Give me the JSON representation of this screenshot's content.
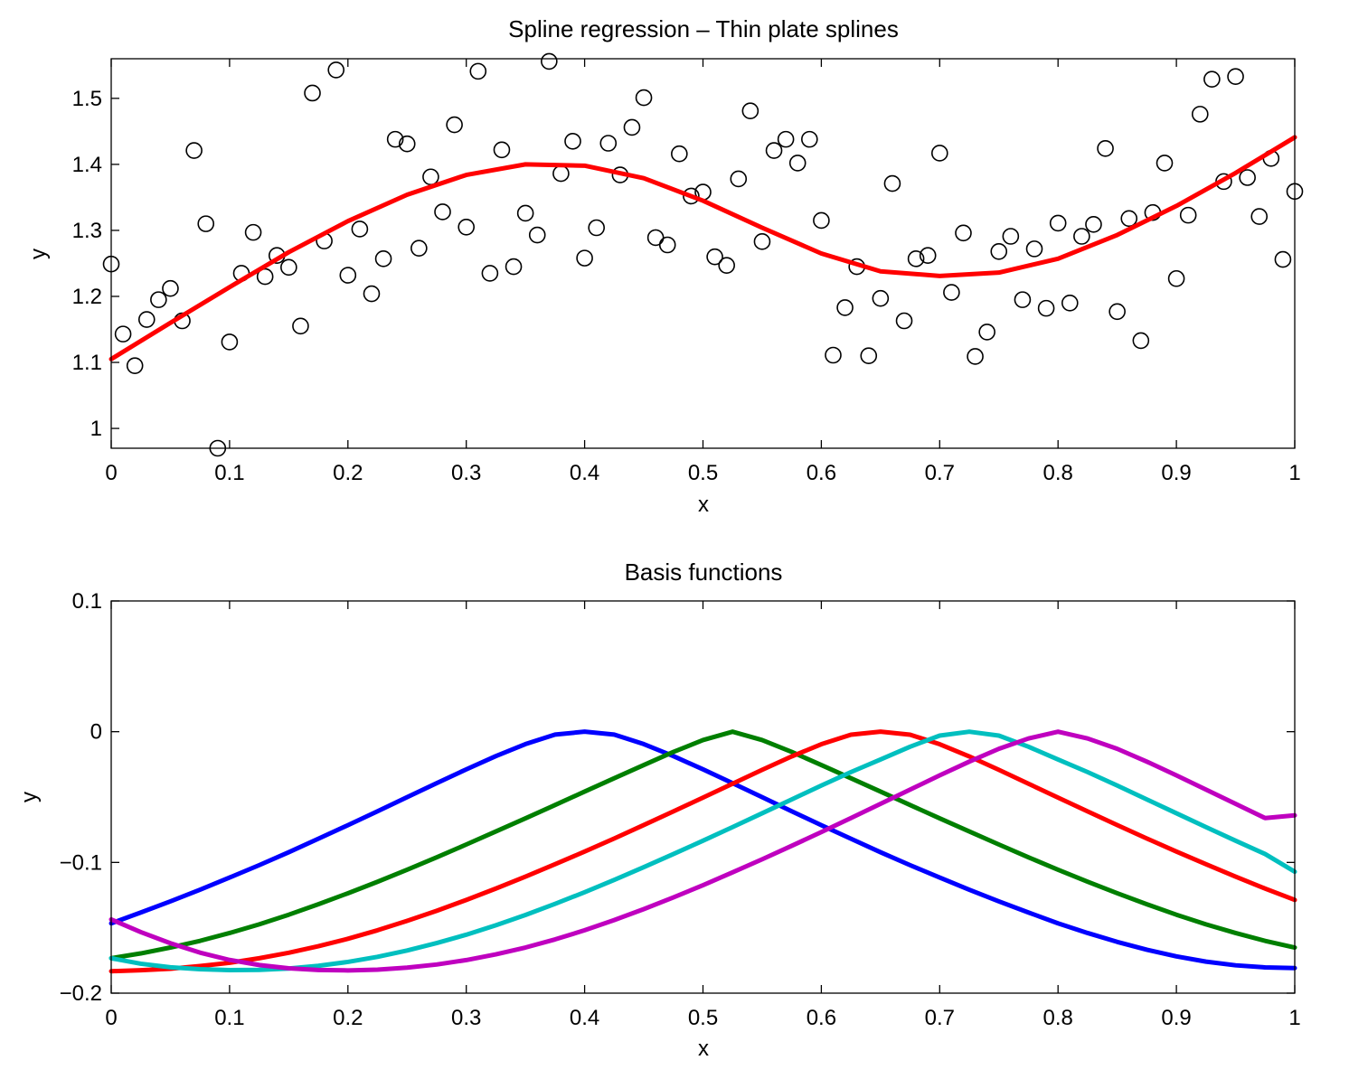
{
  "chart_data": [
    {
      "type": "scatter",
      "title": "Spline regression – Thin plate splines",
      "xlabel": "x",
      "ylabel": "y",
      "xlim": [
        0,
        1
      ],
      "ylim": [
        0.97,
        1.56
      ],
      "xticks": [
        "0",
        "0.1",
        "0.2",
        "0.3",
        "0.4",
        "0.5",
        "0.6",
        "0.7",
        "0.8",
        "0.9",
        "1"
      ],
      "yticks": [
        "1",
        "1.1",
        "1.2",
        "1.3",
        "1.4",
        "1.5"
      ],
      "series": [
        {
          "mark": "circle",
          "color": "#000000",
          "x": [
            0,
            0.01,
            0.02,
            0.03,
            0.04,
            0.05,
            0.06,
            0.07,
            0.08,
            0.09,
            0.1,
            0.11,
            0.12,
            0.13,
            0.14,
            0.15,
            0.16,
            0.17,
            0.18,
            0.19,
            0.2,
            0.21,
            0.22,
            0.23,
            0.24,
            0.25,
            0.26,
            0.27,
            0.28,
            0.29,
            0.3,
            0.31,
            0.32,
            0.33,
            0.34,
            0.35,
            0.36,
            0.37,
            0.38,
            0.39,
            0.4,
            0.41,
            0.42,
            0.43,
            0.44,
            0.45,
            0.46,
            0.47,
            0.48,
            0.49,
            0.5,
            0.51,
            0.52,
            0.53,
            0.54,
            0.55,
            0.56,
            0.57,
            0.58,
            0.59,
            0.6,
            0.61,
            0.62,
            0.63,
            0.64,
            0.65,
            0.66,
            0.67,
            0.68,
            0.69,
            0.7,
            0.71,
            0.72,
            0.73,
            0.74,
            0.75,
            0.76,
            0.77,
            0.78,
            0.79,
            0.8,
            0.81,
            0.82,
            0.83,
            0.84,
            0.85,
            0.86,
            0.87,
            0.88,
            0.89,
            0.9,
            0.91,
            0.92,
            0.93,
            0.94,
            0.95,
            0.96,
            0.97,
            0.98,
            0.99,
            1
          ],
          "y": [
            1.249,
            1.143,
            1.095,
            1.165,
            1.195,
            1.212,
            1.163,
            1.421,
            1.31,
            0.97,
            1.131,
            1.235,
            1.297,
            1.23,
            1.262,
            1.244,
            1.155,
            1.508,
            1.284,
            1.543,
            1.232,
            1.302,
            1.204,
            1.257,
            1.438,
            1.431,
            1.273,
            1.381,
            1.328,
            1.46,
            1.305,
            1.541,
            1.235,
            1.422,
            1.245,
            1.326,
            1.293,
            1.556,
            1.386,
            1.435,
            1.258,
            1.304,
            1.432,
            1.384,
            1.456,
            1.501,
            1.289,
            1.278,
            1.416,
            1.352,
            1.358,
            1.26,
            1.247,
            1.378,
            1.481,
            1.283,
            1.421,
            1.438,
            1.402,
            1.438,
            1.315,
            1.111,
            1.183,
            1.245,
            1.11,
            1.197,
            1.371,
            1.163,
            1.257,
            1.262,
            1.417,
            1.206,
            1.296,
            1.109,
            1.146,
            1.268,
            1.291,
            1.195,
            1.272,
            1.182,
            1.311,
            1.19,
            1.291,
            1.309,
            1.424,
            1.177,
            1.318,
            1.133,
            1.327,
            1.402,
            1.227,
            1.323,
            1.476,
            1.529,
            1.374,
            1.533,
            1.38,
            1.321,
            1.409,
            1.256,
            1.359
          ]
        },
        {
          "mark": "line",
          "color": "#ff0000",
          "x": [
            0,
            0.05,
            0.1,
            0.15,
            0.2,
            0.25,
            0.3,
            0.35,
            0.4,
            0.45,
            0.5,
            0.55,
            0.6,
            0.65,
            0.7,
            0.75,
            0.8,
            0.85,
            0.9,
            0.95,
            1
          ],
          "y": [
            1.105,
            1.16,
            1.214,
            1.267,
            1.314,
            1.354,
            1.384,
            1.4,
            1.398,
            1.379,
            1.345,
            1.304,
            1.265,
            1.238,
            1.231,
            1.236,
            1.257,
            1.293,
            1.337,
            1.387,
            1.441
          ]
        }
      ]
    },
    {
      "type": "line",
      "title": "Basis functions",
      "xlabel": "x",
      "ylabel": "y",
      "xlim": [
        0,
        1
      ],
      "ylim": [
        -0.2,
        0.1
      ],
      "xticks": [
        "0",
        "0.1",
        "0.2",
        "0.3",
        "0.4",
        "0.5",
        "0.6",
        "0.7",
        "0.8",
        "0.9",
        "1"
      ],
      "yticks": [
        "−0.2",
        "−0.1",
        "0",
        "0.1"
      ],
      "x": [
        0,
        0.025,
        0.05,
        0.075,
        0.1,
        0.125,
        0.15,
        0.175,
        0.2,
        0.225,
        0.25,
        0.275,
        0.3,
        0.325,
        0.35,
        0.375,
        0.4,
        0.425,
        0.45,
        0.475,
        0.5,
        0.525,
        0.55,
        0.575,
        0.6,
        0.625,
        0.65,
        0.675,
        0.7,
        0.725,
        0.75,
        0.775,
        0.8,
        0.825,
        0.85,
        0.875,
        0.9,
        0.925,
        0.95,
        0.975,
        1
      ],
      "series": [
        {
          "color": "#0000ff",
          "values": [
            -0.1466,
            -0.1383,
            -0.1298,
            -0.1209,
            -0.1116,
            -0.1021,
            -0.0922,
            -0.0819,
            -0.0715,
            -0.0609,
            -0.0501,
            -0.0394,
            -0.0288,
            -0.0187,
            -0.0095,
            -0.0022,
            0.0,
            -0.0022,
            -0.0095,
            -0.0187,
            -0.0288,
            -0.0394,
            -0.0501,
            -0.0609,
            -0.0715,
            -0.0819,
            -0.0922,
            -0.1021,
            -0.1116,
            -0.1209,
            -0.1298,
            -0.1383,
            -0.1466,
            -0.154,
            -0.1608,
            -0.1668,
            -0.1719,
            -0.1759,
            -0.1787,
            -0.1803,
            -0.1808
          ]
        },
        {
          "color": "#007f00",
          "values": [
            -0.1733,
            -0.1696,
            -0.1651,
            -0.16,
            -0.154,
            -0.1474,
            -0.14,
            -0.132,
            -0.1236,
            -0.1148,
            -0.1056,
            -0.0961,
            -0.0863,
            -0.0763,
            -0.0663,
            -0.0561,
            -0.0458,
            -0.0356,
            -0.0255,
            -0.0155,
            -0.0064,
            0.0,
            -0.0064,
            -0.0155,
            -0.0255,
            -0.0356,
            -0.0458,
            -0.0561,
            -0.0663,
            -0.0763,
            -0.0863,
            -0.0961,
            -0.1056,
            -0.1148,
            -0.1236,
            -0.132,
            -0.14,
            -0.1474,
            -0.154,
            -0.16,
            -0.1651
          ]
        },
        {
          "color": "#ff0000",
          "values": [
            -0.1832,
            -0.1825,
            -0.1813,
            -0.1793,
            -0.1768,
            -0.1733,
            -0.1691,
            -0.1641,
            -0.1584,
            -0.1519,
            -0.1447,
            -0.137,
            -0.1287,
            -0.12,
            -0.1109,
            -0.1014,
            -0.0917,
            -0.0817,
            -0.0714,
            -0.061,
            -0.0504,
            -0.0398,
            -0.0292,
            -0.0189,
            -0.0096,
            -0.0023,
            0.0,
            -0.0023,
            -0.0096,
            -0.0189,
            -0.0292,
            -0.0398,
            -0.0504,
            -0.061,
            -0.0714,
            -0.0817,
            -0.0917,
            -0.1014,
            -0.1109,
            -0.12,
            -0.1287
          ]
        },
        {
          "color": "#00bfbf",
          "values": [
            -0.1733,
            -0.1775,
            -0.1802,
            -0.1817,
            -0.1824,
            -0.1822,
            -0.1812,
            -0.1791,
            -0.1761,
            -0.1722,
            -0.1674,
            -0.1617,
            -0.1553,
            -0.1481,
            -0.1402,
            -0.1317,
            -0.1228,
            -0.1134,
            -0.1036,
            -0.0936,
            -0.0834,
            -0.073,
            -0.0624,
            -0.0518,
            -0.0412,
            -0.0309,
            -0.0213,
            -0.0115,
            -0.003,
            0.0,
            -0.003,
            -0.0115,
            -0.0213,
            -0.0309,
            -0.0412,
            -0.0518,
            -0.0624,
            -0.073,
            -0.0834,
            -0.0936,
            -0.1071
          ]
        },
        {
          "color": "#bf00bf",
          "values": [
            -0.1436,
            -0.1533,
            -0.1618,
            -0.169,
            -0.1746,
            -0.1785,
            -0.181,
            -0.1823,
            -0.1826,
            -0.182,
            -0.1805,
            -0.1781,
            -0.1747,
            -0.1703,
            -0.1651,
            -0.1589,
            -0.1519,
            -0.1441,
            -0.1357,
            -0.1268,
            -0.1174,
            -0.1076,
            -0.0976,
            -0.0873,
            -0.0768,
            -0.0661,
            -0.0552,
            -0.0443,
            -0.0334,
            -0.0229,
            -0.0131,
            -0.0052,
            0.0,
            -0.0052,
            -0.0131,
            -0.0229,
            -0.0334,
            -0.0443,
            -0.0552,
            -0.0661,
            -0.064
          ]
        }
      ]
    }
  ]
}
